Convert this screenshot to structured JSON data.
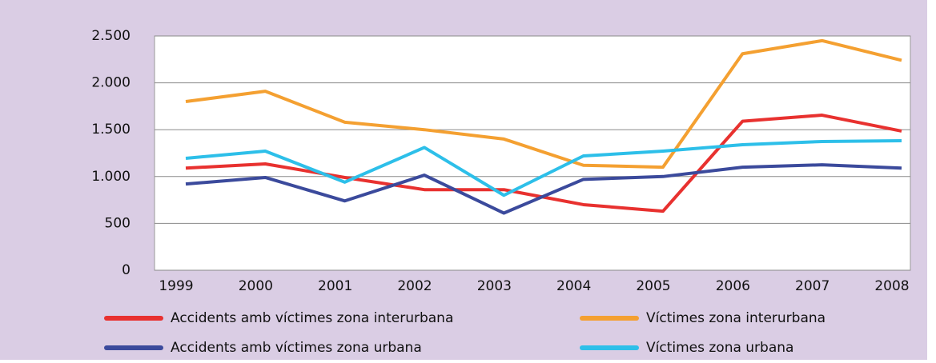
{
  "chart_data": {
    "type": "line",
    "categories": [
      "1999",
      "2000",
      "2001",
      "2002",
      "2003",
      "2004",
      "2005",
      "2006",
      "2007",
      "2008"
    ],
    "series": [
      {
        "name": "Accidents amb víctimes zona interurbana",
        "color": "#e8312f",
        "values": [
          1090,
          1135,
          990,
          860,
          860,
          700,
          630,
          1590,
          1655,
          1485
        ]
      },
      {
        "name": "Víctimes zona interurbana",
        "color": "#f4a031",
        "values": [
          1800,
          1910,
          1580,
          1500,
          1400,
          1120,
          1100,
          2310,
          2450,
          2240
        ]
      },
      {
        "name": "Accidents amb víctimes zona urbana",
        "color": "#3b4a9c",
        "values": [
          920,
          990,
          740,
          1015,
          610,
          970,
          1000,
          1100,
          1125,
          1090
        ]
      },
      {
        "name": "Víctimes zona urbana",
        "color": "#2dbfe9",
        "values": [
          1195,
          1271,
          940,
          1310,
          800,
          1220,
          1271,
          1340,
          1374,
          1382
        ]
      }
    ],
    "ylim": [
      0,
      2500
    ],
    "yticks": [
      0,
      500,
      {
        "value": 1000,
        "label": "1.000"
      },
      {
        "value": 1500,
        "label": "1.500"
      },
      {
        "value": 2000,
        "label": "2.000"
      },
      {
        "value": 2500,
        "label": "2.500"
      }
    ],
    "grid": true
  }
}
